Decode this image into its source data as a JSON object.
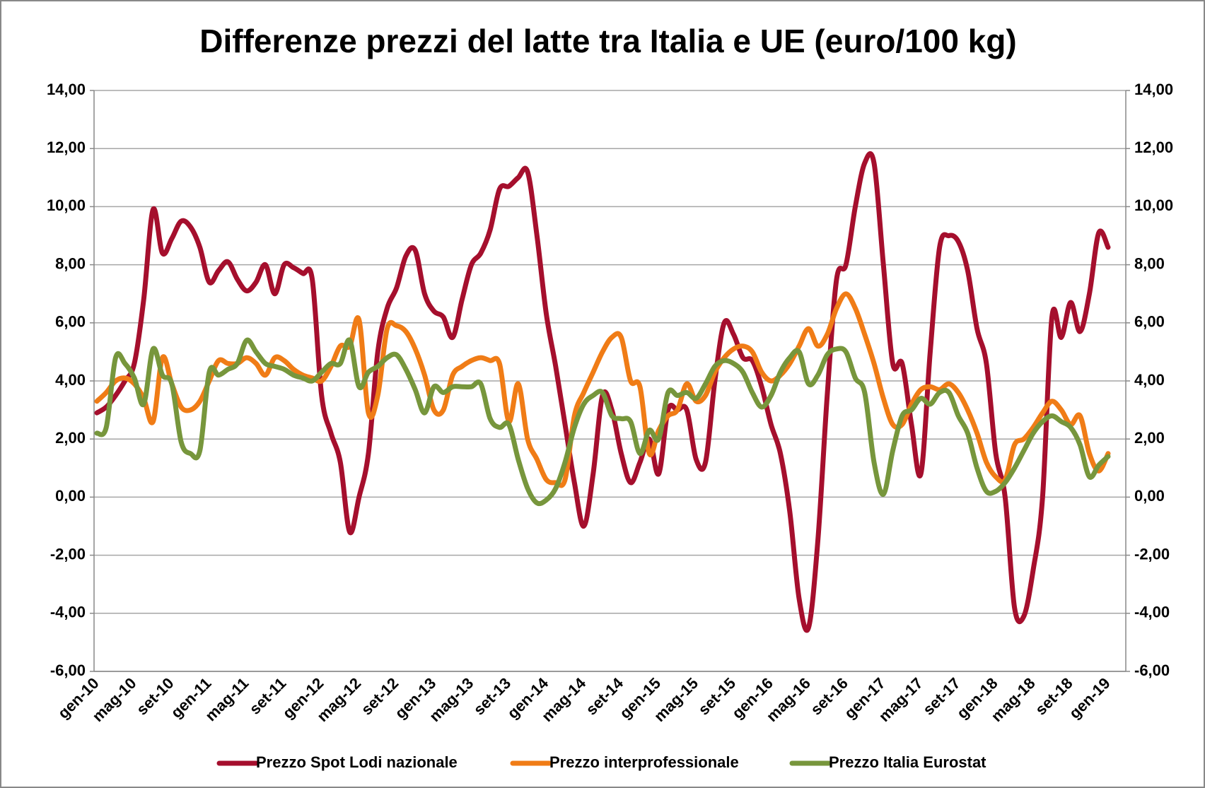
{
  "chart_data": {
    "type": "line",
    "title": "Differenze prezzi del latte tra Italia e UE (euro/100 kg)",
    "categories": [
      "gen-10",
      null,
      null,
      null,
      "mag-10",
      null,
      null,
      null,
      "set-10",
      null,
      null,
      null,
      "gen-11",
      null,
      null,
      null,
      "mag-11",
      null,
      null,
      null,
      "set-11",
      null,
      null,
      null,
      "gen-12",
      null,
      null,
      null,
      "mag-12",
      null,
      null,
      null,
      "set-12",
      null,
      null,
      null,
      "gen-13",
      null,
      null,
      null,
      "mag-13",
      null,
      null,
      null,
      "set-13",
      null,
      null,
      null,
      "gen-14",
      null,
      null,
      null,
      "mag-14",
      null,
      null,
      null,
      "set-14",
      null,
      null,
      null,
      "gen-15",
      null,
      null,
      null,
      "mag-15",
      null,
      null,
      null,
      "set-15",
      null,
      null,
      null,
      "gen-16",
      null,
      null,
      null,
      "mag-16",
      null,
      null,
      null,
      "set-16",
      null,
      null,
      null,
      "gen-17",
      null,
      null,
      null,
      "mag-17",
      null,
      null,
      null,
      "set-17",
      null,
      null,
      null,
      "gen-18",
      null,
      null,
      null,
      "mag-18",
      null,
      null,
      null,
      "set-18",
      null,
      null,
      null,
      "gen-19"
    ],
    "series": [
      {
        "name": "Prezzo Spot Lodi nazionale",
        "color": "#a50f2d",
        "values": [
          2.9,
          3.1,
          3.5,
          4.0,
          4.6,
          6.8,
          9.9,
          8.4,
          8.9,
          9.5,
          9.3,
          8.6,
          7.4,
          7.8,
          8.1,
          7.5,
          7.1,
          7.4,
          8.0,
          7.0,
          8.0,
          7.9,
          7.7,
          7.5,
          3.5,
          2.2,
          1.2,
          -1.2,
          0.0,
          1.5,
          5.0,
          6.5,
          7.2,
          8.3,
          8.5,
          7.0,
          6.4,
          6.2,
          5.5,
          6.8,
          8.0,
          8.4,
          9.2,
          10.6,
          10.7,
          11.0,
          11.2,
          9.0,
          6.3,
          4.5,
          2.5,
          0.5,
          -1.0,
          0.8,
          3.5,
          3.0,
          1.5,
          0.5,
          1.2,
          2.0,
          0.8,
          3.0,
          3.0,
          3.0,
          1.3,
          1.2,
          4.0,
          6.0,
          5.6,
          4.8,
          4.7,
          3.8,
          2.5,
          1.5,
          -0.5,
          -3.5,
          -4.5,
          -1.5,
          3.5,
          7.5,
          8.0,
          10.0,
          11.5,
          11.5,
          8.0,
          4.6,
          4.6,
          2.5,
          0.8,
          5.0,
          8.6,
          9.0,
          8.8,
          7.8,
          5.8,
          4.6,
          1.5,
          0.0,
          -3.8,
          -4.1,
          -2.5,
          0.0,
          6.2,
          5.5,
          6.7,
          5.7,
          7.0,
          9.1,
          8.6
        ]
      },
      {
        "name": "Prezzo interprofessionale",
        "color": "#f07c16",
        "values": [
          3.3,
          3.6,
          4.0,
          4.1,
          3.9,
          3.4,
          2.6,
          4.8,
          3.9,
          3.1,
          3.0,
          3.3,
          4.0,
          4.7,
          4.6,
          4.6,
          4.8,
          4.6,
          4.2,
          4.8,
          4.7,
          4.4,
          4.2,
          4.1,
          4.0,
          4.5,
          5.2,
          5.2,
          6.1,
          2.9,
          3.5,
          5.8,
          5.9,
          5.7,
          5.1,
          4.2,
          3.0,
          3.0,
          4.2,
          4.5,
          4.7,
          4.8,
          4.7,
          4.6,
          2.6,
          3.9,
          2.0,
          1.3,
          0.6,
          0.5,
          0.6,
          2.8,
          3.6,
          4.3,
          5.0,
          5.5,
          5.5,
          4.0,
          3.8,
          1.5,
          2.3,
          2.8,
          3.0,
          3.9,
          3.3,
          3.5,
          4.3,
          4.8,
          5.1,
          5.2,
          5.0,
          4.3,
          4.0,
          4.2,
          4.6,
          5.2,
          5.8,
          5.2,
          5.6,
          6.5,
          7.0,
          6.5,
          5.6,
          4.6,
          3.4,
          2.5,
          2.5,
          3.2,
          3.7,
          3.8,
          3.7,
          3.9,
          3.6,
          3.0,
          2.2,
          1.2,
          0.7,
          0.6,
          1.8,
          2.0,
          2.4,
          2.9,
          3.3,
          3.0,
          2.5,
          2.8,
          1.5,
          0.9,
          1.5
        ]
      },
      {
        "name": "Prezzo Italia Eurostat",
        "color": "#77963c",
        "values": [
          2.2,
          2.4,
          4.8,
          4.6,
          4.1,
          3.2,
          5.1,
          4.2,
          3.9,
          1.9,
          1.5,
          1.6,
          4.3,
          4.2,
          4.4,
          4.6,
          5.4,
          5.0,
          4.6,
          4.5,
          4.4,
          4.2,
          4.1,
          4.0,
          4.3,
          4.6,
          4.6,
          5.4,
          3.8,
          4.3,
          4.5,
          4.8,
          4.9,
          4.4,
          3.7,
          2.9,
          3.8,
          3.6,
          3.8,
          3.8,
          3.8,
          3.9,
          2.7,
          2.4,
          2.5,
          1.3,
          0.3,
          -0.2,
          -0.1,
          0.3,
          1.2,
          2.4,
          3.2,
          3.5,
          3.6,
          2.8,
          2.7,
          2.6,
          1.5,
          2.3,
          2.0,
          3.6,
          3.5,
          3.6,
          3.4,
          3.9,
          4.5,
          4.7,
          4.6,
          4.3,
          3.6,
          3.1,
          3.5,
          4.3,
          4.8,
          5.0,
          3.9,
          4.2,
          4.9,
          5.1,
          5.0,
          4.1,
          3.6,
          1.2,
          0.1,
          1.6,
          2.8,
          3.0,
          3.4,
          3.2,
          3.6,
          3.6,
          2.8,
          2.2,
          1.0,
          0.2,
          0.2,
          0.5,
          1.0,
          1.6,
          2.2,
          2.6,
          2.8,
          2.6,
          2.4,
          1.8,
          0.7,
          1.1,
          1.4
        ]
      }
    ],
    "ylim": [
      -6,
      14
    ],
    "yticks": [
      {
        "value": -6,
        "label": "-6,00"
      },
      {
        "value": -4,
        "label": "-4,00"
      },
      {
        "value": -2,
        "label": "-2,00"
      },
      {
        "value": 0,
        "label": "0,00"
      },
      {
        "value": 2,
        "label": "2,00"
      },
      {
        "value": 4,
        "label": "4,00"
      },
      {
        "value": 6,
        "label": "6,00"
      },
      {
        "value": 8,
        "label": "8,00"
      },
      {
        "value": 10,
        "label": "10,00"
      },
      {
        "value": 12,
        "label": "12,00"
      },
      {
        "value": 14,
        "label": "14,00"
      }
    ],
    "y2lim": [
      -6,
      14
    ],
    "y2ticks": [
      {
        "value": -6,
        "label": "-6,00"
      },
      {
        "value": -4,
        "label": "-4,00"
      },
      {
        "value": -2,
        "label": "-2,00"
      },
      {
        "value": 0,
        "label": "0,00"
      },
      {
        "value": 2,
        "label": "2,00"
      },
      {
        "value": 4,
        "label": "4,00"
      },
      {
        "value": 6,
        "label": "6,00"
      },
      {
        "value": 8,
        "label": "8,00"
      },
      {
        "value": 10,
        "label": "10,00"
      },
      {
        "value": 12,
        "label": "12,00"
      },
      {
        "value": 14,
        "label": "14,00"
      }
    ],
    "grid": true,
    "legend": "bottom"
  }
}
